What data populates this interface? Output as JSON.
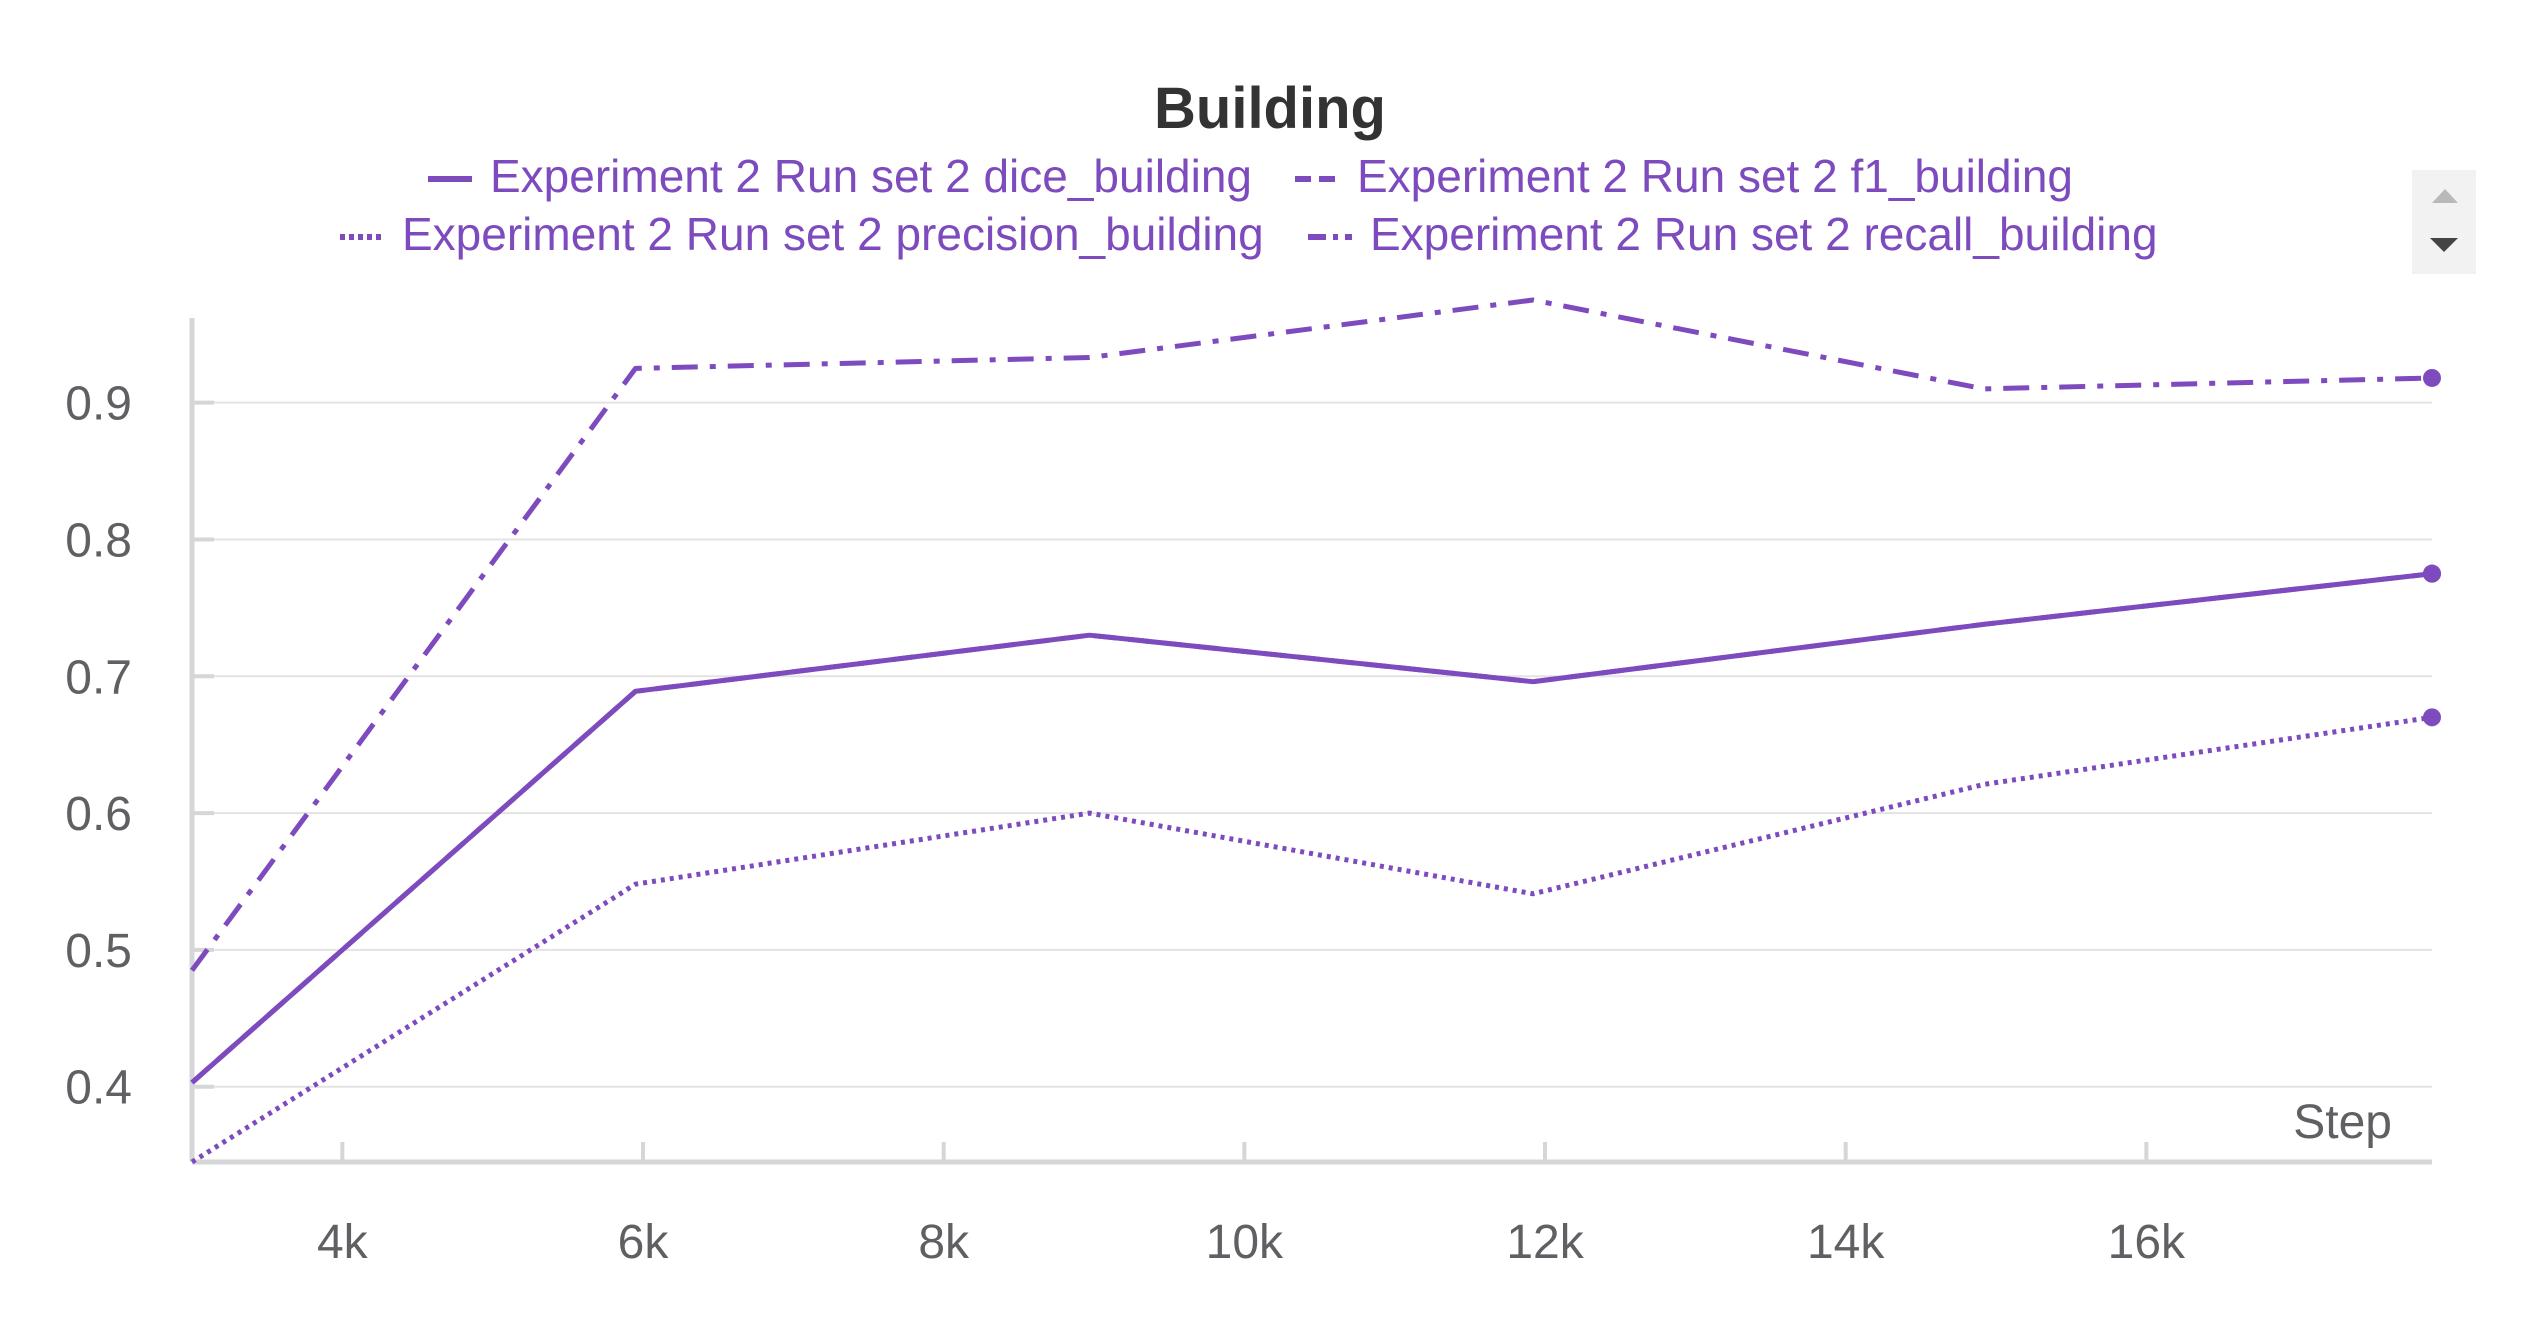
{
  "colors": {
    "series": "#7d4bbd",
    "text": "#333333",
    "axis_text": "#5f6063"
  },
  "legend": {
    "items": [
      {
        "label": "Experiment 2 Run set 2 dice_building",
        "dash": "solid"
      },
      {
        "label": "Experiment 2 Run set 2 f1_building",
        "dash": "dashed"
      },
      {
        "label": "Experiment 2 Run set 2 precision_building",
        "dash": "dotted"
      },
      {
        "label": "Experiment 2 Run set 2 recall_building",
        "dash": "dashdot"
      }
    ],
    "scroll_up_icon": "triangle-up-icon",
    "scroll_down_icon": "triangle-down-icon"
  },
  "chart_data": {
    "type": "line",
    "title": "Building",
    "xlabel": "Step",
    "ylabel": "",
    "xlim": [
      3000,
      17900
    ],
    "ylim": [
      0.345,
      0.975
    ],
    "x_ticks": [
      4000,
      6000,
      8000,
      10000,
      12000,
      14000,
      16000
    ],
    "x_tick_labels": [
      "4k",
      "6k",
      "8k",
      "10k",
      "12k",
      "14k",
      "16k"
    ],
    "y_ticks": [
      0.4,
      0.5,
      0.6,
      0.7,
      0.8,
      0.9
    ],
    "y_tick_labels": [
      "0.4",
      "0.5",
      "0.6",
      "0.7",
      "0.8",
      "0.9"
    ],
    "grid": true,
    "legend_position": "top",
    "series": [
      {
        "name": "Experiment 2 Run set 2 dice_building",
        "dash": "solid",
        "x": [
          3000,
          5950,
          8970,
          11920,
          14920,
          17900
        ],
        "y": [
          0.403,
          0.689,
          0.73,
          0.696,
          0.738,
          0.775
        ]
      },
      {
        "name": "Experiment 2 Run set 2 f1_building",
        "dash": "dashed",
        "x": [
          3000,
          5950,
          8970,
          11920,
          14920,
          17900
        ],
        "y": [
          0.403,
          0.689,
          0.73,
          0.696,
          0.738,
          0.775
        ]
      },
      {
        "name": "Experiment 2 Run set 2 precision_building",
        "dash": "dotted",
        "x": [
          3000,
          5950,
          8970,
          11920,
          14920,
          17900
        ],
        "y": [
          0.345,
          0.548,
          0.6,
          0.541,
          0.621,
          0.67
        ]
      },
      {
        "name": "Experiment 2 Run set 2 recall_building",
        "dash": "dashdot",
        "x": [
          3000,
          5950,
          8970,
          11920,
          14920,
          17900
        ],
        "y": [
          0.485,
          0.925,
          0.933,
          0.975,
          0.91,
          0.918
        ]
      }
    ]
  }
}
